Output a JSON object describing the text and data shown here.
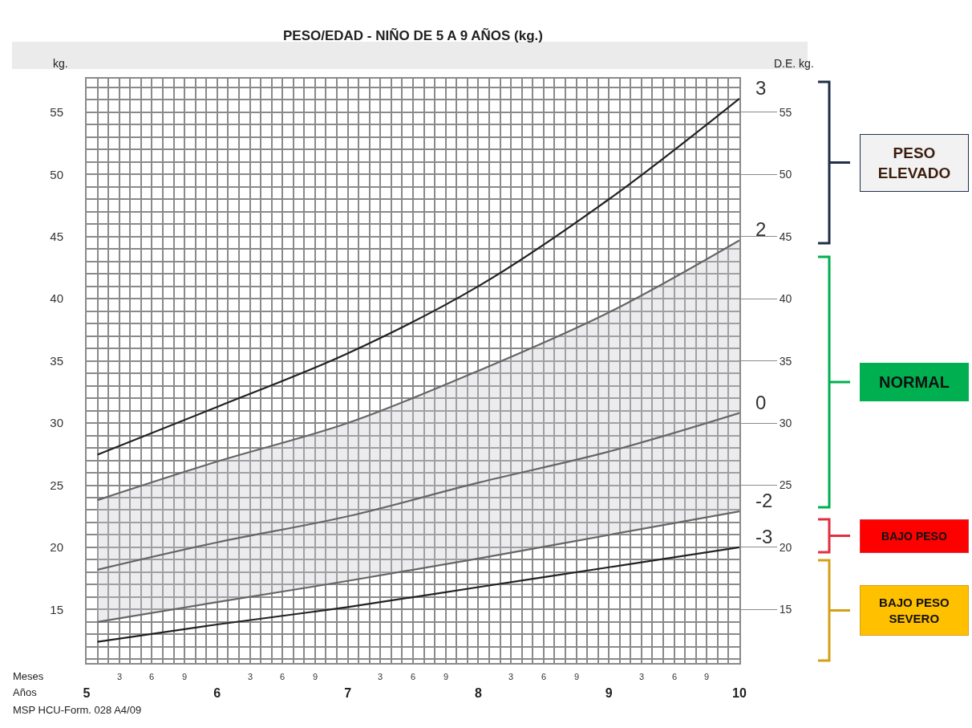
{
  "chart_data": {
    "type": "line",
    "title": "PESO/EDAD - NIÑO DE 5 A 9 AÑOS (kg.)",
    "ylabel": "kg.",
    "y2label": "D.E. kg.",
    "x": [
      5.083,
      6,
      7,
      8,
      9,
      10
    ],
    "series": [
      {
        "name": "3",
        "color": "#222222",
        "values": [
          27.45,
          31.3,
          35.6,
          41.0,
          48.0,
          56.1
        ]
      },
      {
        "name": "2",
        "color": "#666666",
        "values": [
          23.8,
          26.9,
          30.0,
          34.2,
          38.9,
          44.7
        ]
      },
      {
        "name": "0",
        "color": "#666666",
        "values": [
          18.2,
          20.4,
          22.5,
          25.2,
          27.7,
          30.8
        ],
        "lower": [
          14.0,
          15.6,
          17.3,
          19.1,
          21.0,
          22.9
        ],
        "upper": [
          23.8,
          26.9,
          30.0,
          34.2,
          38.9,
          44.7
        ]
      },
      {
        "name": "-2",
        "color": "#666666",
        "values": [
          14.0,
          15.6,
          17.3,
          19.1,
          21.0,
          22.9
        ]
      },
      {
        "name": "-3",
        "color": "#222222",
        "values": [
          12.4,
          13.8,
          15.2,
          16.8,
          18.4,
          20.0
        ]
      }
    ],
    "xlim": [
      5,
      10
    ],
    "xticks": [
      5,
      6,
      7,
      8,
      9,
      10
    ],
    "ylim": [
      10.7,
      57.7
    ],
    "yticks": [
      15,
      20,
      25,
      30,
      35,
      40,
      45,
      50,
      55
    ],
    "y2lim": [
      10.7,
      57.7
    ],
    "y2ticks": [
      15,
      20,
      25,
      30,
      35,
      40,
      45,
      50,
      55
    ],
    "annotations": [
      "MSP HCU-Form. 028 A4/09",
      "Meses",
      "Años",
      "PESO ELEVADO",
      "NORMAL",
      "BAJO PESO",
      "BAJO PESO SEVERO",
      "3",
      "6",
      "9",
      "3",
      "6",
      "9",
      "3",
      "6",
      "9",
      "3",
      "6",
      "9",
      "3",
      "6",
      "9"
    ],
    "grid": true,
    "legend": false,
    "marker": "none",
    "line_style": "solid"
  }
}
